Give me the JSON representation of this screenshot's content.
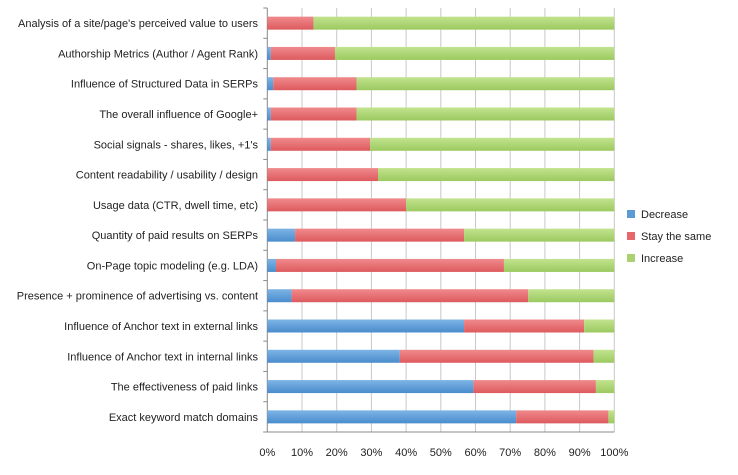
{
  "chart_data": {
    "type": "bar",
    "orientation": "horizontal",
    "stacked": "100%",
    "categories": [
      "Analysis of a site/page's perceived value to users",
      "Authorship Metrics (Author / Agent Rank)",
      "Influence of Structured Data in SERPs",
      "The overall influence of Google+",
      "Social signals - shares, likes, +1's",
      "Content readability / usability / design",
      "Usage data (CTR, dwell time, etc)",
      "Quantity of paid results on SERPs",
      "On-Page topic modeling (e.g. LDA)",
      "Presence + prominence of advertising vs. content",
      "Influence of Anchor text in external links",
      "Influence of Anchor text in internal links",
      "The effectiveness of paid links",
      "Exact keyword match domains"
    ],
    "series": [
      {
        "name": "Decrease",
        "color": "#5b9bd5",
        "values": [
          0,
          1,
          1.7,
          1,
          1,
          0,
          0,
          8,
          2.5,
          7,
          56.7,
          38.2,
          59.4,
          71.7
        ]
      },
      {
        "name": "Stay the same",
        "color": "#e8676b",
        "values": [
          13.3,
          18.5,
          24,
          24.7,
          28.6,
          31.9,
          40,
          48.7,
          65.7,
          68.2,
          34.6,
          55.8,
          35.3,
          26.6
        ]
      },
      {
        "name": "Increase",
        "color": "#a9d36e",
        "values": [
          86.7,
          80.5,
          74.3,
          74.3,
          70.4,
          68.1,
          60,
          43.3,
          31.8,
          24.8,
          8.7,
          6,
          5.3,
          1.7
        ]
      }
    ],
    "xlim": [
      0,
      100
    ],
    "x_ticks": [
      "0%",
      "10%",
      "20%",
      "30%",
      "40%",
      "50%",
      "60%",
      "70%",
      "80%",
      "90%",
      "100%"
    ],
    "grid": "vertical",
    "legend": "right"
  }
}
